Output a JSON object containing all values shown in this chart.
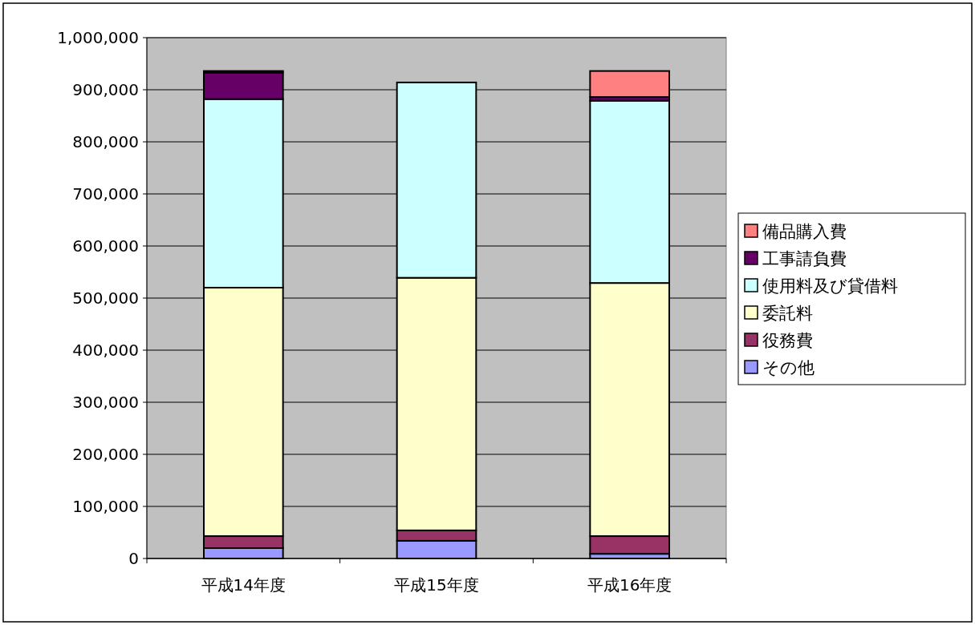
{
  "chart_data": {
    "type": "bar",
    "stacked": true,
    "categories": [
      "平成14年度",
      "平成15年度",
      "平成16年度"
    ],
    "series": [
      {
        "name": "その他",
        "color": "#9999ff",
        "values": [
          20000,
          34000,
          9000
        ]
      },
      {
        "name": "役務費",
        "color": "#993366",
        "values": [
          23000,
          20000,
          34000
        ]
      },
      {
        "name": "委託料",
        "color": "#ffffcc",
        "values": [
          477000,
          485000,
          486000
        ]
      },
      {
        "name": "使用料及び貸借料",
        "color": "#ccffff",
        "values": [
          362000,
          375000,
          350000
        ]
      },
      {
        "name": "工事請負費",
        "color": "#660066",
        "values": [
          51000,
          0,
          7000
        ]
      },
      {
        "name": "備品購入費",
        "color": "#ff8080",
        "values": [
          3000,
          0,
          50000
        ]
      }
    ],
    "ylim": [
      0,
      1000000
    ],
    "yticks": [
      {
        "value": 0,
        "label": "0"
      },
      {
        "value": 100000,
        "label": "100,000"
      },
      {
        "value": 200000,
        "label": "200,000"
      },
      {
        "value": 300000,
        "label": "300,000"
      },
      {
        "value": 400000,
        "label": "400,000"
      },
      {
        "value": 500000,
        "label": "500,000"
      },
      {
        "value": 600000,
        "label": "600,000"
      },
      {
        "value": 700000,
        "label": "700,000"
      },
      {
        "value": 800000,
        "label": "800,000"
      },
      {
        "value": 900000,
        "label": "900,000"
      },
      {
        "value": 1000000,
        "label": "1,000,000"
      }
    ],
    "grid": "y",
    "legend": "right"
  }
}
